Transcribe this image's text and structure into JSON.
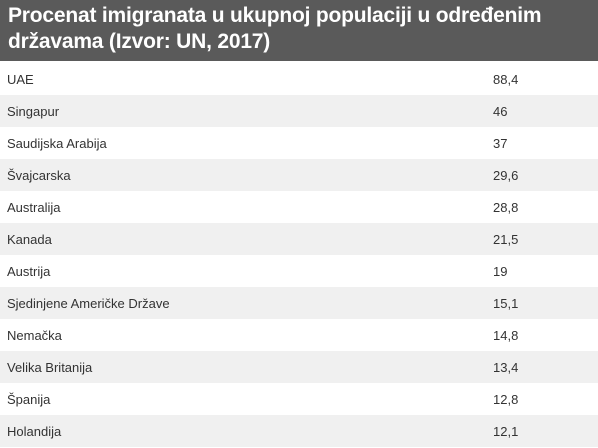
{
  "title": "Procenat imigranata u ukupnoj populaciji u određenim državama (Izvor: UN, 2017)",
  "colors": {
    "header_bg": "#5a5a5a",
    "header_text": "#ffffff",
    "row_alt": "#f0f0f0",
    "text": "#333333"
  },
  "chart_data": {
    "type": "table",
    "title": "Procenat imigranata u ukupnoj populaciji u određenim državama (Izvor: UN, 2017)",
    "columns": [
      "",
      ""
    ],
    "rows": [
      {
        "country": "UAE",
        "value": "88,4"
      },
      {
        "country": "Singapur",
        "value": "46"
      },
      {
        "country": "Saudijska Arabija",
        "value": "37"
      },
      {
        "country": "Švajcarska",
        "value": "29,6"
      },
      {
        "country": "Australija",
        "value": "28,8"
      },
      {
        "country": "Kanada",
        "value": "21,5"
      },
      {
        "country": "Austrija",
        "value": "19"
      },
      {
        "country": "Sjedinjene Američke Države",
        "value": "15,1"
      },
      {
        "country": "Nemačka",
        "value": "14,8"
      },
      {
        "country": "Velika Britanija",
        "value": "13,4"
      },
      {
        "country": "Španija",
        "value": "12,8"
      },
      {
        "country": "Holandija",
        "value": "12,1"
      }
    ]
  }
}
